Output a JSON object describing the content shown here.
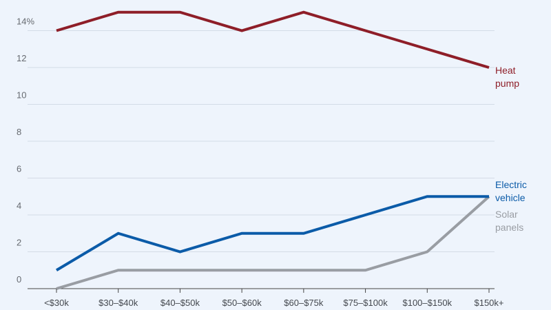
{
  "chart_data": {
    "type": "line",
    "categories": [
      "<$30k",
      "$30–$40k",
      "$40–$50k",
      "$50–$60k",
      "$60–$75k",
      "$75–$100k",
      "$100–$150k",
      "$150k+"
    ],
    "y_ticks": [
      "0",
      "2",
      "4",
      "6",
      "8",
      "10",
      "12",
      "14%"
    ],
    "ylim": [
      0,
      15.5
    ],
    "grid": true,
    "series": [
      {
        "name": "Heat pump",
        "label_lines": [
          "Heat",
          "pump"
        ],
        "color": "#8e1e28",
        "values": [
          14,
          15,
          15,
          14,
          15,
          14,
          13,
          12
        ]
      },
      {
        "name": "Electric vehicle",
        "label_lines": [
          "Electric",
          "vehicle"
        ],
        "color": "#0b5ba8",
        "values": [
          1,
          3,
          2,
          3,
          3,
          4,
          5,
          5
        ]
      },
      {
        "name": "Solar panels",
        "label_lines": [
          "Solar",
          "panels"
        ],
        "color": "#999da3",
        "values": [
          0,
          1,
          1,
          1,
          1,
          1,
          2,
          5
        ]
      }
    ]
  }
}
